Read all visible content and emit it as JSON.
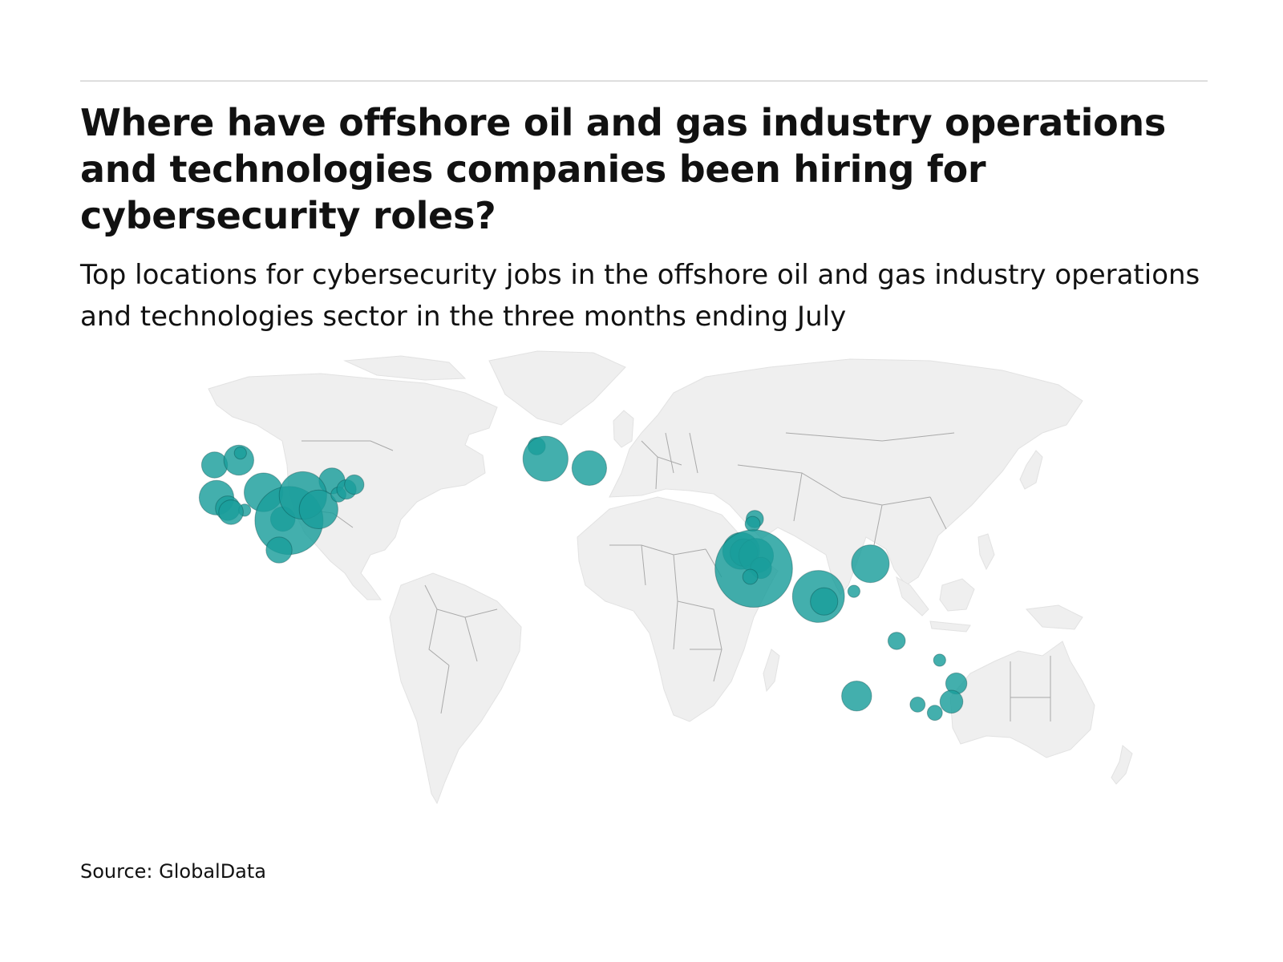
{
  "chart_title": "Where have offshore oil and gas industry operations and technologies companies been hiring for cybersecurity roles?",
  "chart_subtitle": "Top locations for cybersecurity jobs in the offshore oil and gas industry operations and technologies sector in the three months ending July",
  "source": "Source: GlobalData",
  "colors": {
    "bubble": "#1a9e9b",
    "land": "#efefef",
    "border": "#a9a9a9",
    "rule": "#dedede"
  },
  "chart_data": {
    "type": "bubble-map",
    "title": "Where have offshore oil and gas industry operations and technologies companies been hiring for cybersecurity roles?",
    "subtitle": "Top locations for cybersecurity jobs in the offshore oil and gas industry operations and technologies sector in the three months ending July",
    "value_unit": "relative job count (estimated from bubble size)",
    "points": [
      {
        "lon": -123.1,
        "lat": 49.3,
        "value": 9
      },
      {
        "lon": -114.1,
        "lat": 51.0,
        "value": 12
      },
      {
        "lon": -113.5,
        "lat": 53.5,
        "value": 2
      },
      {
        "lon": -79.4,
        "lat": 43.7,
        "value": 9
      },
      {
        "lon": -122.4,
        "lat": 37.8,
        "value": 16
      },
      {
        "lon": -118.2,
        "lat": 34.1,
        "value": 8
      },
      {
        "lon": -111.9,
        "lat": 33.4,
        "value": 2
      },
      {
        "lon": -104.9,
        "lat": 39.7,
        "value": 20
      },
      {
        "lon": -97.7,
        "lat": 30.3,
        "value": 8
      },
      {
        "lon": -95.4,
        "lat": 29.8,
        "value": 62
      },
      {
        "lon": -90.2,
        "lat": 38.6,
        "value": 30
      },
      {
        "lon": -84.4,
        "lat": 33.7,
        "value": 20
      },
      {
        "lon": -77.0,
        "lat": 38.9,
        "value": 3
      },
      {
        "lon": -74.0,
        "lat": 40.7,
        "value": 5
      },
      {
        "lon": -71.1,
        "lat": 42.4,
        "value": 5
      },
      {
        "lon": -117.0,
        "lat": 32.7,
        "value": 8
      },
      {
        "lon": -99.1,
        "lat": 19.4,
        "value": 9
      },
      {
        "lon": -3.2,
        "lat": 55.9,
        "value": 4
      },
      {
        "lon": 0.1,
        "lat": 51.5,
        "value": 27
      },
      {
        "lon": 16.4,
        "lat": 48.2,
        "value": 16
      },
      {
        "lon": 78.0,
        "lat": 30.3,
        "value": 4
      },
      {
        "lon": 72.9,
        "lat": 19.1,
        "value": 18
      },
      {
        "lon": 73.9,
        "lat": 18.5,
        "value": 10
      },
      {
        "lon": 77.2,
        "lat": 28.6,
        "value": 3
      },
      {
        "lon": 78.5,
        "lat": 17.4,
        "value": 16
      },
      {
        "lon": 80.3,
        "lat": 13.1,
        "value": 6
      },
      {
        "lon": 77.6,
        "lat": 12.9,
        "value": 80
      },
      {
        "lon": 76.3,
        "lat": 10.0,
        "value": 3
      },
      {
        "lon": 101.7,
        "lat": 3.1,
        "value": 36
      },
      {
        "lon": 103.8,
        "lat": 1.35,
        "value": 10
      },
      {
        "lon": 121.0,
        "lat": 14.6,
        "value": 19
      },
      {
        "lon": 114.9,
        "lat": 4.9,
        "value": 2
      },
      {
        "lon": 130.8,
        "lat": -12.5,
        "value": 4
      },
      {
        "lon": 146.8,
        "lat": -19.3,
        "value": 2
      },
      {
        "lon": 153.0,
        "lat": -27.5,
        "value": 6
      },
      {
        "lon": 115.9,
        "lat": -31.9,
        "value": 12
      },
      {
        "lon": 138.6,
        "lat": -34.9,
        "value": 3
      },
      {
        "lon": 151.2,
        "lat": -33.9,
        "value": 7
      },
      {
        "lon": 145.0,
        "lat": -37.8,
        "value": 3
      }
    ]
  }
}
